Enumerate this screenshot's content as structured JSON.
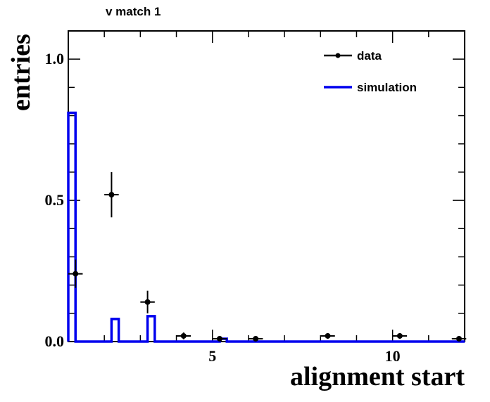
{
  "chart_data": {
    "type": "histogram",
    "title": "v match 1",
    "xlabel": "alignment start",
    "ylabel": "entries",
    "xlim": [
      1,
      12
    ],
    "ylim": [
      0,
      1.1
    ],
    "x_ticks": [
      5,
      10
    ],
    "y_ticks": [
      0.0,
      0.5,
      1.0
    ],
    "y_tick_labels": [
      "0.0",
      "0.5",
      "1.0"
    ],
    "legend": {
      "position": "top-right",
      "entries": [
        {
          "label": "data",
          "style": "marker-with-errorbar"
        },
        {
          "label": "simulation",
          "style": "line"
        }
      ]
    },
    "series": [
      {
        "name": "data",
        "color": "#000000",
        "points": [
          {
            "x": 1.2,
            "y": 0.24,
            "err": 0.05
          },
          {
            "x": 2.2,
            "y": 0.52,
            "err": 0.08
          },
          {
            "x": 3.2,
            "y": 0.14,
            "err": 0.04
          },
          {
            "x": 4.2,
            "y": 0.02,
            "err": 0.012
          },
          {
            "x": 5.2,
            "y": 0.01,
            "err": 0.008
          },
          {
            "x": 6.2,
            "y": 0.01,
            "err": 0.008
          },
          {
            "x": 8.2,
            "y": 0.02,
            "err": 0.01
          },
          {
            "x": 10.2,
            "y": 0.02,
            "err": 0.01
          },
          {
            "x": 12.2,
            "y": 0.01,
            "err": 0.008
          }
        ]
      },
      {
        "name": "simulation",
        "color": "#0000ee",
        "bins": [
          {
            "x0": 1.0,
            "x1": 1.2,
            "y": 0.81
          },
          {
            "x0": 1.2,
            "x1": 2.2,
            "y": 0.0
          },
          {
            "x0": 2.2,
            "x1": 2.4,
            "y": 0.08
          },
          {
            "x0": 2.4,
            "x1": 3.2,
            "y": 0.0
          },
          {
            "x0": 3.2,
            "x1": 3.4,
            "y": 0.09
          },
          {
            "x0": 3.4,
            "x1": 5.2,
            "y": 0.0
          },
          {
            "x0": 5.2,
            "x1": 5.4,
            "y": 0.01
          },
          {
            "x0": 5.4,
            "x1": 12.0,
            "y": 0.0
          }
        ]
      }
    ]
  }
}
